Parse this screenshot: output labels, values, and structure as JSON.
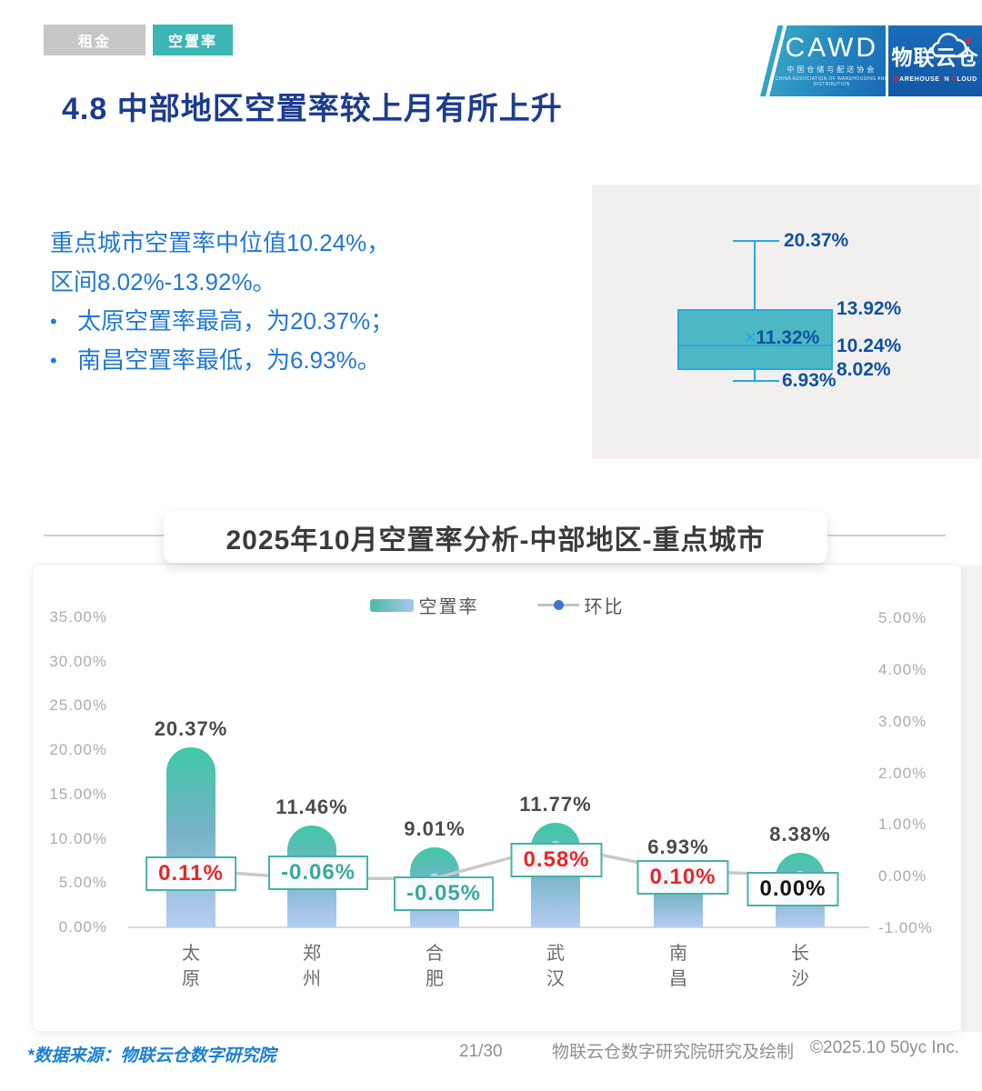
{
  "tabs": [
    {
      "label": "租金",
      "active": false
    },
    {
      "label": "空置率",
      "active": true
    }
  ],
  "logo": {
    "cawd": "CAWD",
    "cawd_sub": "中国仓储与配送协会",
    "cawd_sub_en": "CHINA ASSOCIATION OF WAREHOUSING AND DISTRIBUTION",
    "wic": "物联云仓",
    "wic_sub": "WAREHOUSE IN CLOUD"
  },
  "page_title": "4.8 中部地区空置率较上月有所上升",
  "summary": {
    "line1": "重点城市空置率中位值10.24%，",
    "line2": "区间8.02%-13.92%。",
    "bullet1": "太原空置率最高，为20.37%；",
    "bullet2": "南昌空置率最低，为6.93%。"
  },
  "boxplot_labels": {
    "marker": "×",
    "max": "20.37%",
    "q3": "13.92%",
    "mean": "11.32%",
    "median": "10.24%",
    "q1": "8.02%",
    "min": "6.93%"
  },
  "chart_data": [
    {
      "type": "boxplot",
      "unit": "%",
      "min": 6.93,
      "q1": 8.02,
      "median": 10.24,
      "mean": 11.32,
      "q3": 13.92,
      "max": 20.37
    },
    {
      "type": "bar",
      "title": "2025年10月空置率分析-中部地区-重点城市",
      "categories": [
        "太原",
        "郑州",
        "合肥",
        "武汉",
        "南昌",
        "长沙"
      ],
      "series": [
        {
          "name": "空置率",
          "type": "bar",
          "axis": "left",
          "values": [
            20.37,
            11.46,
            9.01,
            11.77,
            6.93,
            8.38
          ]
        },
        {
          "name": "环比",
          "type": "line",
          "axis": "right",
          "values": [
            0.11,
            -0.06,
            -0.05,
            0.58,
            0.1,
            0.0
          ]
        }
      ],
      "left_axis": {
        "min": 0,
        "max": 35,
        "ticks": [
          "35.00%",
          "30.00%",
          "25.00%",
          "20.00%",
          "15.00%",
          "10.00%",
          "5.00%",
          "0.00%"
        ]
      },
      "right_axis": {
        "min": -1,
        "max": 5,
        "ticks": [
          "5.00%",
          "4.00%",
          "3.00%",
          "2.00%",
          "1.00%",
          "0.00%",
          "-1.00%"
        ]
      },
      "legend_position": "top",
      "grid": false
    }
  ],
  "colors": {
    "accent_teal": "#3cb5b4",
    "title_navy": "#1c3c8e",
    "summary_blue": "#2178d4",
    "box_fill": "#4db9c4",
    "box_stroke": "#29a7e0",
    "bar_top": "#3ec9a6",
    "bar_bottom": "#b6cdf2",
    "line_gray": "#c9c9c9",
    "positive_red": "#e8262a",
    "negative_teal": "#3aaa9b"
  },
  "footer": {
    "source": "*数据来源：物联云仓数字研究院",
    "page": "21/30",
    "credit": "物联云仓数字研究院研究及绘制",
    "copyright": "©2025.10 50yc Inc."
  }
}
